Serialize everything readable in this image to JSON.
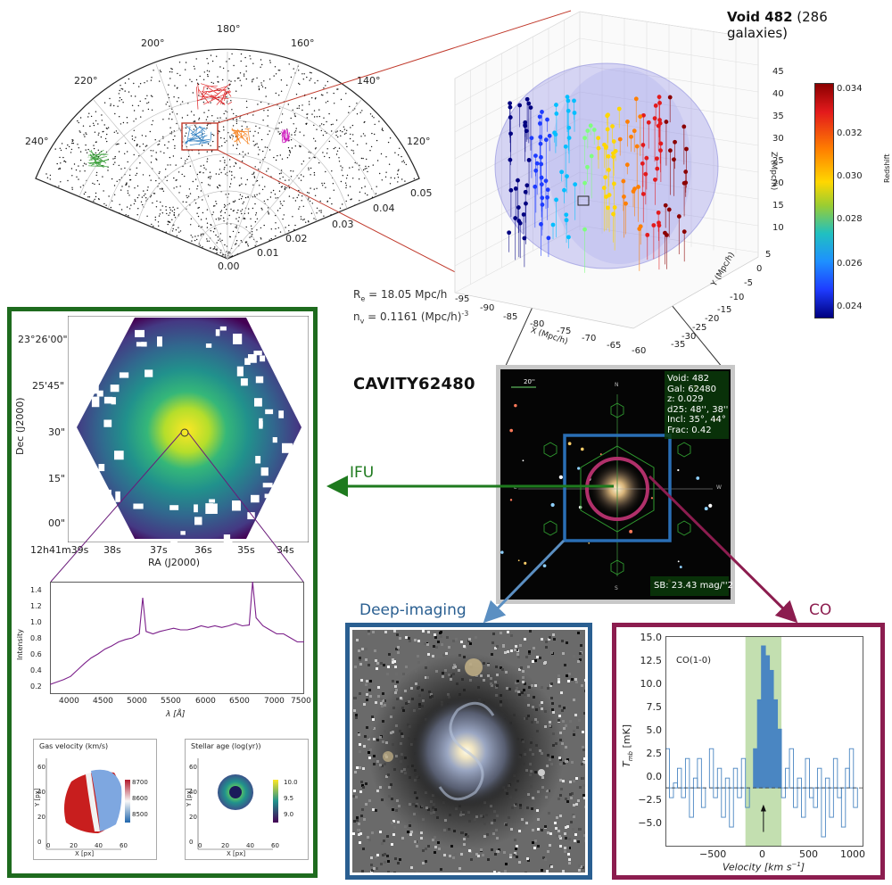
{
  "void": {
    "title_bold": "Void 482",
    "title_rest": " (286 galaxies)"
  },
  "cavity_name": "CAVITY62480",
  "void_params": {
    "re": "R",
    "re_sub": "e",
    "re_val": " = 18.05 Mpc/h",
    "nv": "n",
    "nv_sub": "v",
    "nv_val": " = 0.1161 (Mpc/h)",
    "nv_sup": "-3"
  },
  "arrows": {
    "ifu": "IFU",
    "deep": "Deep-imaging",
    "co": "CO"
  },
  "fan": {
    "angles": [
      "180°",
      "200°",
      "160°",
      "220°",
      "140°",
      "240°",
      "120°"
    ],
    "radii": [
      "0.00",
      "0.01",
      "0.02",
      "0.03",
      "0.04",
      "0.05"
    ]
  },
  "cube": {
    "z_ticks": [
      "45",
      "40",
      "35",
      "30",
      "25",
      "20",
      "15",
      "10"
    ],
    "z_label": "Z (Mpc/h)",
    "y_ticks": [
      "5",
      "0",
      "-5",
      "-10",
      "-15",
      "-20",
      "-25",
      "-30",
      "-35"
    ],
    "y_label": "Y (Mpc/h)",
    "x_ticks": [
      "-95",
      "-90",
      "-85",
      "-80",
      "-75",
      "-70",
      "-65",
      "-60"
    ],
    "x_label": "X (Mpc/h)"
  },
  "colorbar": {
    "label": "Redshift",
    "ticks": [
      "0.034",
      "0.032",
      "0.030",
      "0.028",
      "0.026",
      "0.024"
    ],
    "colors": [
      "#8b0000",
      "#e31a1c",
      "#ff7f00",
      "#ffd700",
      "#7fff7f",
      "#00bfff",
      "#1e3cff",
      "#000080"
    ]
  },
  "sdss": {
    "info": [
      "Void: 482",
      "Gal: 62480",
      "z: 0.029",
      "d25: 48'', 38''",
      "Incl: 35°, 44°",
      "Frac: 0.42"
    ],
    "scale": "20''",
    "n": "N",
    "s": "S",
    "w": "W",
    "e": "E",
    "sb": "SB: 23.43 mag/''2"
  },
  "ifu_map": {
    "dec_label": "Dec (J2000)",
    "ra_label": "RA (J2000)",
    "dec_ticks": [
      "23°26'00\"",
      "25'45\"",
      "30\"",
      "15\"",
      "00\""
    ],
    "ra_ticks": [
      "12h41m39s",
      "38s",
      "37s",
      "36s",
      "35s",
      "34s"
    ]
  },
  "spectrum": {
    "xlabel": "λ [Å]",
    "ylabel": "Intensity",
    "xticks": [
      "4000",
      "4500",
      "5000",
      "5500",
      "6000",
      "6500",
      "7000",
      "7500"
    ],
    "yticks": [
      "1.4",
      "1.2",
      "1.0",
      "0.8",
      "0.6",
      "0.4",
      "0.2"
    ],
    "xlim": [
      3800,
      7500
    ],
    "ylim": [
      0.1,
      1.5
    ],
    "color": "#7b1f8a"
  },
  "gas_map": {
    "title": "Gas velocity (km/s)",
    "cb_ticks": [
      "8700",
      "8600",
      "8500"
    ],
    "xlabel": "X [px]",
    "ylabel": "Y [px]",
    "xticks": [
      "0",
      "20",
      "40",
      "60"
    ],
    "yticks": [
      "60",
      "40",
      "20",
      "0"
    ]
  },
  "age_map": {
    "title": "Stellar age (log(yr))",
    "cb_ticks": [
      "10.0",
      "9.5",
      "9.0"
    ],
    "xlabel": "X [px]",
    "ylabel": "Y [px]",
    "xticks": [
      "0",
      "20",
      "40",
      "60"
    ],
    "yticks": [
      "60",
      "40",
      "20",
      "0"
    ]
  },
  "co_chart": {
    "legend": "CO(1-0)",
    "ylabel": "T",
    "ylabel_sub": "mb",
    "ylabel_unit": "[mK]",
    "xlabel": "Velocity [km s",
    "xlabel_sup": "−1",
    "xlabel_end": "]",
    "xticks": [
      "−500",
      "0",
      "500",
      "1000"
    ],
    "yticks": [
      "15.0",
      "12.5",
      "10.0",
      "7.5",
      "5.0",
      "2.5",
      "0.0",
      "−2.5",
      "−5.0"
    ],
    "xlim": [
      -980,
      1000
    ],
    "ylim": [
      -6,
      15.5
    ],
    "band": [
      -180,
      180
    ],
    "color": "#4a86c2",
    "band_color": "#a9d18e"
  },
  "chart_data": [
    {
      "type": "line",
      "title": "",
      "xlabel": "λ [Å]",
      "ylabel": "Intensity",
      "xlim": [
        3800,
        7500
      ],
      "ylim": [
        0.1,
        1.5
      ],
      "x": [
        3800,
        3900,
        4000,
        4100,
        4200,
        4300,
        4400,
        4500,
        4600,
        4700,
        4800,
        4900,
        5000,
        5100,
        5150,
        5200,
        5300,
        5400,
        5500,
        5600,
        5700,
        5800,
        5900,
        6000,
        6100,
        6200,
        6300,
        6400,
        6500,
        6600,
        6700,
        6750,
        6800,
        6900,
        7000,
        7100,
        7200,
        7300,
        7400,
        7500
      ],
      "y": [
        0.22,
        0.25,
        0.28,
        0.32,
        0.4,
        0.48,
        0.55,
        0.6,
        0.66,
        0.7,
        0.75,
        0.78,
        0.8,
        0.85,
        1.3,
        0.88,
        0.85,
        0.88,
        0.9,
        0.92,
        0.9,
        0.9,
        0.92,
        0.95,
        0.93,
        0.95,
        0.93,
        0.95,
        0.98,
        0.95,
        0.96,
        1.5,
        1.05,
        0.95,
        0.9,
        0.85,
        0.85,
        0.8,
        0.75,
        0.75
      ]
    },
    {
      "type": "bar",
      "title": "",
      "xlabel": "Velocity [km s−1]",
      "ylabel": "Tmb [mK]",
      "xlim": [
        -980,
        1000
      ],
      "ylim": [
        -6,
        15.5
      ],
      "x": [
        -960,
        -920,
        -880,
        -840,
        -800,
        -760,
        -720,
        -680,
        -640,
        -600,
        -560,
        -520,
        -480,
        -440,
        -400,
        -360,
        -320,
        -280,
        -240,
        -200,
        -160,
        -120,
        -80,
        -40,
        0,
        40,
        80,
        120,
        160,
        200,
        240,
        280,
        320,
        360,
        400,
        440,
        480,
        520,
        560,
        600,
        640,
        680,
        720,
        760,
        800,
        840,
        880,
        920,
        960
      ],
      "values": [
        4,
        -1,
        0.5,
        2,
        -1,
        3,
        -3,
        1,
        3,
        -2,
        0,
        4,
        -1,
        2,
        -3,
        1,
        -4,
        2,
        -1,
        3,
        -2,
        0,
        4,
        9,
        14.5,
        13.5,
        12,
        9,
        6,
        -1,
        2,
        4,
        -2,
        1,
        -3,
        3,
        -1,
        -2,
        2,
        -5,
        1,
        -3,
        3,
        -1,
        -4,
        2,
        4,
        -2,
        0
      ]
    }
  ]
}
